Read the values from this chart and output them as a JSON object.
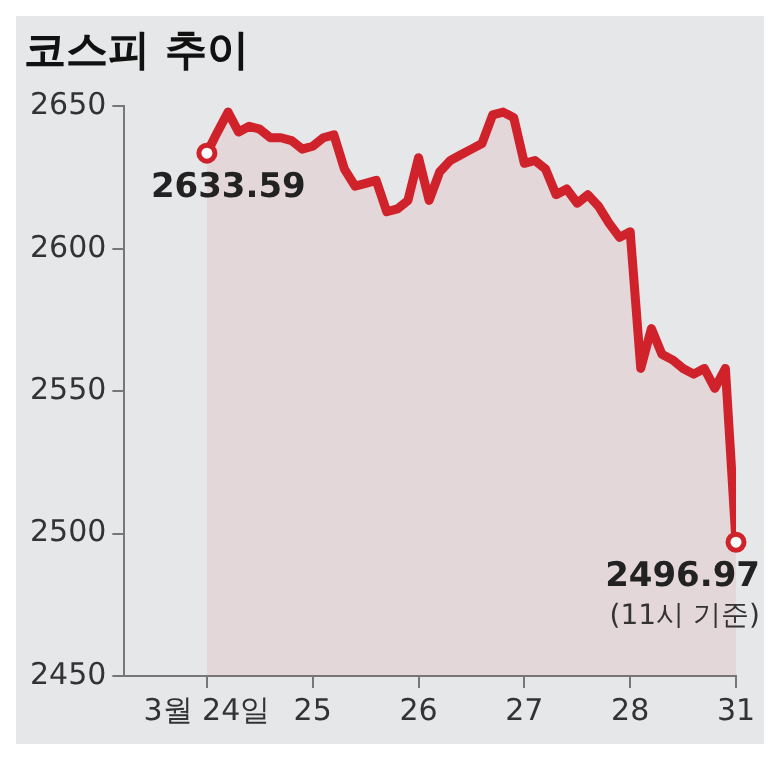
{
  "chart_data": {
    "type": "area",
    "title": "코스피 추이",
    "categories": [
      "3월 24일",
      null,
      null,
      null,
      null,
      null,
      null,
      null,
      null,
      null,
      "25",
      null,
      null,
      null,
      null,
      null,
      null,
      null,
      null,
      null,
      "26",
      null,
      null,
      null,
      null,
      null,
      null,
      null,
      null,
      null,
      "27",
      null,
      null,
      null,
      null,
      null,
      null,
      null,
      null,
      null,
      "28",
      null,
      null,
      null,
      null,
      null,
      null,
      null,
      null,
      null,
      "31"
    ],
    "ylim": [
      2450,
      2650
    ],
    "yticks": [
      2450,
      2500,
      2550,
      2600,
      2650
    ],
    "grid": false,
    "legend": false,
    "marker": "none",
    "line_style": "solid",
    "series": [
      {
        "color": "#d0222a",
        "values": [
          2633.59,
          2641,
          2648,
          2641,
          2643,
          2642,
          2639,
          2639,
          2638,
          2635,
          2636,
          2639,
          2640,
          2628,
          2622,
          2623,
          2624,
          2613,
          2614,
          2617,
          2632,
          2617,
          2627,
          2631,
          2633,
          2635,
          2637,
          2647,
          2648,
          2646,
          2630,
          2631,
          2628,
          2619,
          2621,
          2616,
          2619,
          2615,
          2609,
          2604,
          2606,
          2558,
          2572,
          2563,
          2561,
          2558,
          2556,
          2558,
          2551,
          2558,
          2496.97
        ]
      }
    ],
    "annotations": [
      {
        "text": "2633.59",
        "x": "3월 24일",
        "y": 2633.59
      },
      {
        "text": "2496.97",
        "x": "31",
        "y": 2496.97
      },
      "(11시 기준)"
    ]
  }
}
